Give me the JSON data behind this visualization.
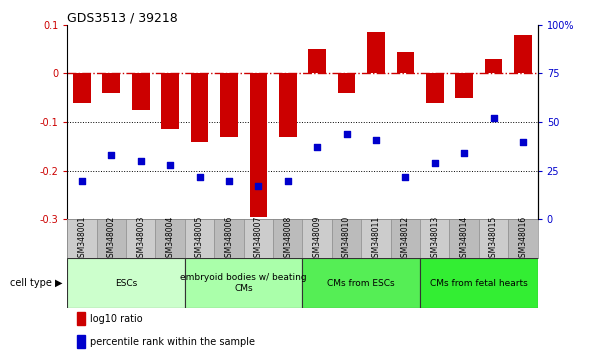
{
  "title": "GDS3513 / 39218",
  "samples": [
    "GSM348001",
    "GSM348002",
    "GSM348003",
    "GSM348004",
    "GSM348005",
    "GSM348006",
    "GSM348007",
    "GSM348008",
    "GSM348009",
    "GSM348010",
    "GSM348011",
    "GSM348012",
    "GSM348013",
    "GSM348014",
    "GSM348015",
    "GSM348016"
  ],
  "log10_ratio": [
    -0.06,
    -0.04,
    -0.075,
    -0.115,
    -0.14,
    -0.13,
    -0.295,
    -0.13,
    0.05,
    -0.04,
    0.085,
    0.045,
    -0.06,
    -0.05,
    0.03,
    0.08
  ],
  "percentile_rank": [
    20,
    33,
    30,
    28,
    22,
    20,
    17,
    20,
    37,
    44,
    41,
    22,
    29,
    34,
    52,
    40
  ],
  "bar_color": "#cc0000",
  "dot_color": "#0000cc",
  "ylim_left": [
    -0.3,
    0.1
  ],
  "ylim_right": [
    0,
    100
  ],
  "yticks_left": [
    -0.3,
    -0.2,
    -0.1,
    0,
    0.1
  ],
  "yticks_right": [
    0,
    25,
    50,
    75,
    100
  ],
  "cell_groups": [
    {
      "label": "ESCs",
      "start": 0,
      "end": 3,
      "color": "#ccffcc"
    },
    {
      "label": "embryoid bodies w/ beating\nCMs",
      "start": 4,
      "end": 7,
      "color": "#aaffaa"
    },
    {
      "label": "CMs from ESCs",
      "start": 8,
      "end": 11,
      "color": "#55ee55"
    },
    {
      "label": "CMs from fetal hearts",
      "start": 12,
      "end": 15,
      "color": "#33ee33"
    }
  ],
  "legend_items": [
    {
      "label": "log10 ratio",
      "color": "#cc0000"
    },
    {
      "label": "percentile rank within the sample",
      "color": "#0000cc"
    }
  ]
}
